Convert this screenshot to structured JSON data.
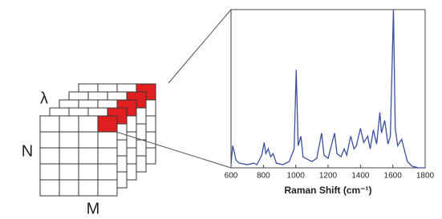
{
  "labels": {
    "lambda": "λ",
    "n": "N",
    "m": "M"
  },
  "chart_data": {
    "type": "line",
    "x_label": "Raman Shift (cm⁻¹)",
    "xlim": [
      600,
      1800
    ],
    "xticks": [
      600,
      800,
      1000,
      1200,
      1400,
      1600,
      1800
    ],
    "ylim": [
      0,
      1
    ],
    "series": [
      {
        "color": "#3a4fa0",
        "x": [
          600,
          610,
          620,
          630,
          650,
          700,
          740,
          760,
          790,
          805,
          815,
          830,
          845,
          860,
          880,
          920,
          960,
          990,
          1003,
          1015,
          1032,
          1045,
          1080,
          1100,
          1130,
          1160,
          1175,
          1200,
          1240,
          1255,
          1280,
          1300,
          1315,
          1340,
          1360,
          1375,
          1400,
          1420,
          1445,
          1460,
          1480,
          1500,
          1520,
          1530,
          1550,
          1570,
          1585,
          1604,
          1615,
          1630,
          1655,
          1670,
          1690,
          1720,
          1760,
          1800
        ],
        "values": [
          0.02,
          0.14,
          0.1,
          0.05,
          0.03,
          0.02,
          0.03,
          0.02,
          0.08,
          0.16,
          0.09,
          0.12,
          0.07,
          0.09,
          0.03,
          0.02,
          0.04,
          0.12,
          0.62,
          0.14,
          0.2,
          0.07,
          0.05,
          0.04,
          0.06,
          0.22,
          0.08,
          0.06,
          0.22,
          0.09,
          0.07,
          0.12,
          0.08,
          0.2,
          0.12,
          0.14,
          0.25,
          0.16,
          0.2,
          0.12,
          0.24,
          0.15,
          0.35,
          0.22,
          0.3,
          0.15,
          0.2,
          1.0,
          0.25,
          0.14,
          0.18,
          0.12,
          0.04,
          0.01,
          0.0,
          0.0
        ]
      }
    ]
  }
}
